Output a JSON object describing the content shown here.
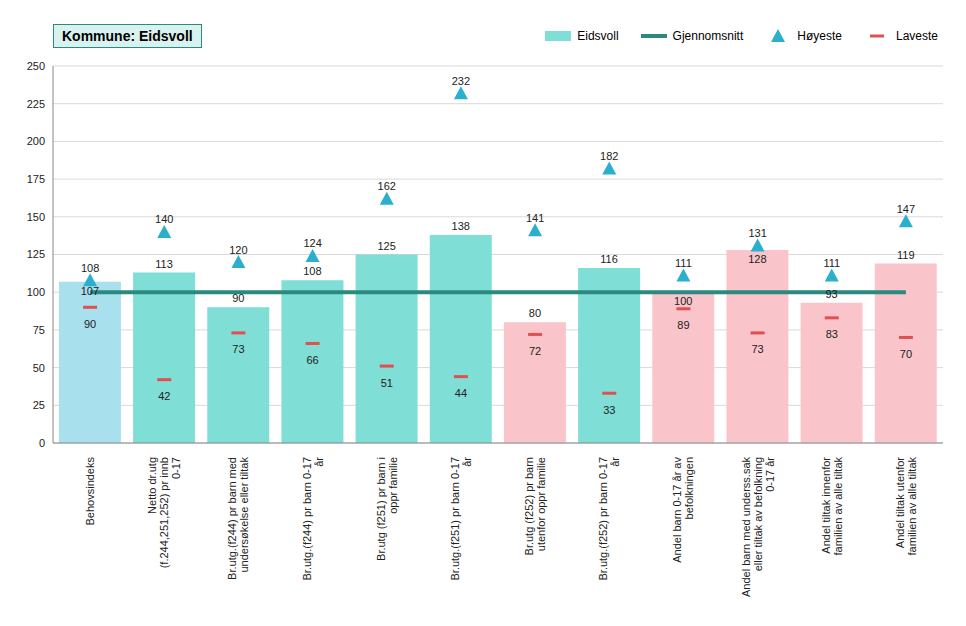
{
  "chart_data": {
    "type": "bar",
    "title": "Kommune: Eidsvoll",
    "categories": [
      "Behovsindeks",
      "Netto dr.utg (f.244,251,252) pr innb 0-17",
      "Br.utg.(f244) pr barn med undersøkelse eller tiltak",
      "Br.utg.(f244) pr barn 0-17 år",
      "Br.utg (f251) pr barn i oppr familie",
      "Br.utg.(f251) pr barn 0-17 år",
      "Br.utg (f252) pr barn utenfor oppr familie",
      "Br.utg.(f252) pr barn 0-17 år",
      "Andel barn 0-17 år av befolkningen",
      "Andel barn med underss.sak eller tiltak av befolkning 0-17 år",
      "Andel tiltak innenfor familien av alle tiltak",
      "Andel tiltak utenfor familien av alle tiltak"
    ],
    "series": [
      {
        "name": "Eidsvoll",
        "type": "bar",
        "color": "#7fded6",
        "colors": [
          "#a8e0ee",
          "#7fded6",
          "#7fded6",
          "#7fded6",
          "#7fded6",
          "#7fded6",
          "#f9c5cb",
          "#7fded6",
          "#f9c5cb",
          "#f9c5cb",
          "#f9c5cb",
          "#f9c5cb"
        ],
        "values": [
          107,
          113,
          90,
          108,
          125,
          138,
          80,
          116,
          100,
          128,
          93,
          119
        ]
      },
      {
        "name": "Gjennomsnitt",
        "type": "line",
        "color": "#2a8a80",
        "line_style": "solid",
        "values": [
          100,
          100,
          100,
          100,
          100,
          100,
          100,
          100,
          100,
          100,
          100,
          100
        ]
      },
      {
        "name": "Høyeste",
        "type": "scatter",
        "marker": "triangle",
        "color": "#2ab0cc",
        "values": [
          108,
          140,
          120,
          124,
          162,
          232,
          141,
          182,
          111,
          131,
          111,
          147
        ]
      },
      {
        "name": "Laveste",
        "type": "scatter",
        "marker": "dash",
        "color": "#e05050",
        "values": [
          90,
          42,
          73,
          66,
          51,
          44,
          72,
          33,
          89,
          73,
          83,
          70
        ]
      }
    ],
    "ylim": [
      0,
      250
    ],
    "yticks": [
      0,
      25,
      50,
      75,
      100,
      125,
      150,
      175,
      200,
      225,
      250
    ],
    "grid": true,
    "data_labels": true,
    "legend": "top right"
  }
}
